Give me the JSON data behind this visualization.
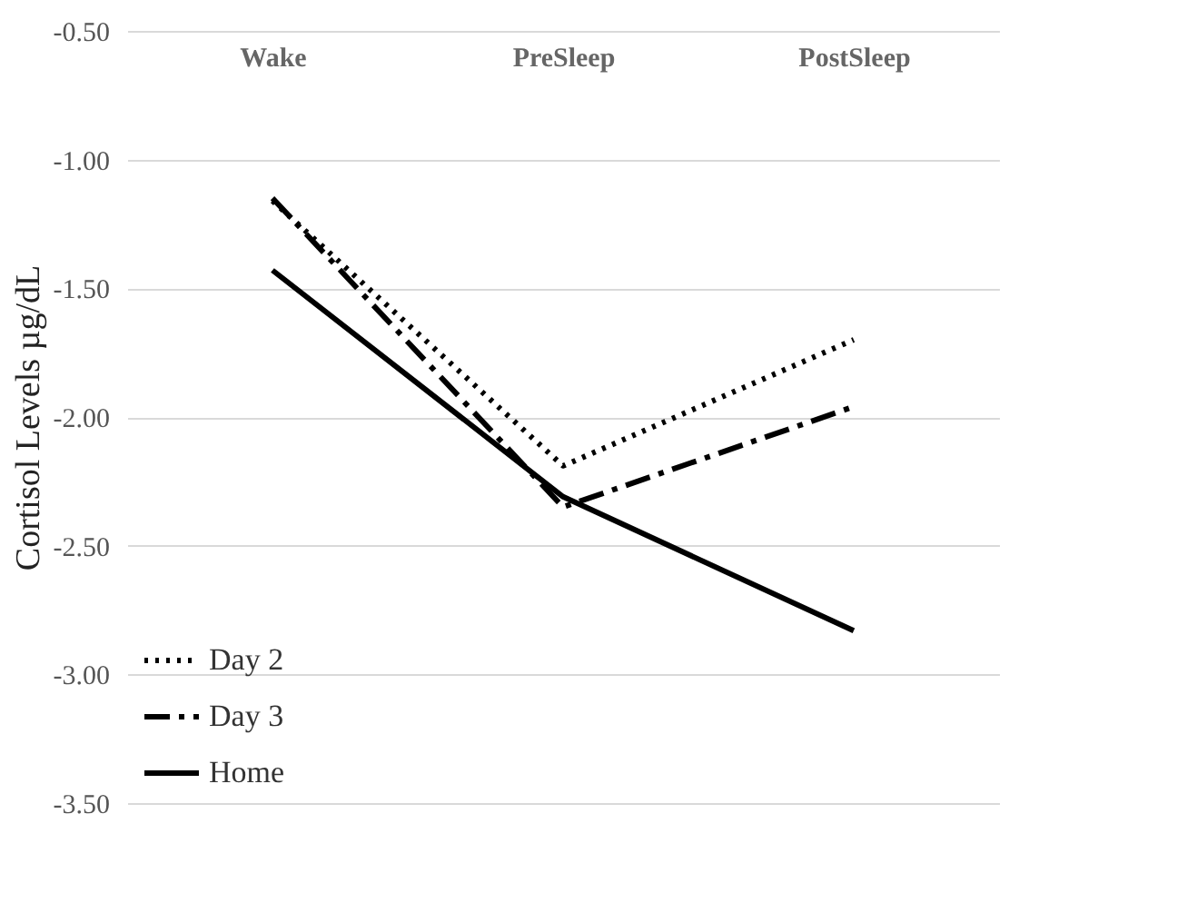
{
  "chart_data": {
    "type": "line",
    "ylabel": "Cortisol Levels µg/dL",
    "categories": [
      "Wake",
      "PreSleep",
      "PostSleep"
    ],
    "series": [
      {
        "name": "Day 2",
        "color": "#000000",
        "line_style": "dotted",
        "values": [
          -1.16,
          -2.19,
          -1.7
        ]
      },
      {
        "name": "Day 3",
        "color": "#000000",
        "line_style": "dashed",
        "values": [
          -1.15,
          -2.35,
          -1.96
        ]
      },
      {
        "name": "Home",
        "color": "#000000",
        "line_style": "solid",
        "values": [
          -1.43,
          -2.31,
          -2.83
        ]
      }
    ],
    "ylim": [
      -3.5,
      -0.5
    ],
    "yticks": [
      {
        "value": -3.5,
        "label": "-3.50"
      },
      {
        "value": -3.0,
        "label": "-3.00"
      },
      {
        "value": -2.5,
        "label": "-2.50"
      },
      {
        "value": -2.0,
        "label": "-2.00"
      },
      {
        "value": -1.5,
        "label": "-1.50"
      },
      {
        "value": -1.0,
        "label": "-1.00"
      },
      {
        "value": -0.5,
        "label": "-0.50"
      }
    ],
    "grid": "y",
    "legend": "bottom left",
    "marker": "none"
  }
}
